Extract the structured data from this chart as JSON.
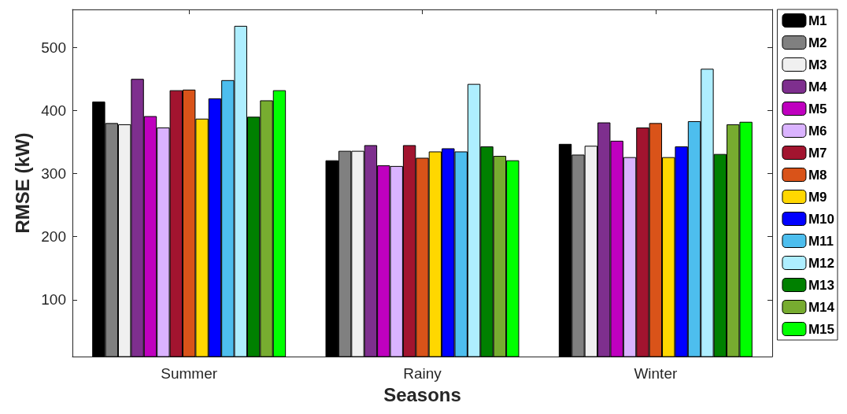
{
  "chart_data": {
    "type": "bar",
    "xlabel": "Seasons",
    "ylabel": "RMSE (kW)",
    "categories": [
      "Summer",
      "Rainy",
      "Winter"
    ],
    "series": [
      {
        "name": "M1",
        "color": "#000000",
        "values": [
          414,
          321,
          347
        ]
      },
      {
        "name": "M2",
        "color": "#808080",
        "values": [
          380,
          336,
          330
        ]
      },
      {
        "name": "M3",
        "color": "#f0f0f0",
        "values": [
          378,
          336,
          344
        ]
      },
      {
        "name": "M4",
        "color": "#7e2f8e",
        "values": [
          450,
          345,
          381
        ]
      },
      {
        "name": "M5",
        "color": "#bf00bf",
        "values": [
          391,
          313,
          352
        ]
      },
      {
        "name": "M6",
        "color": "#dab3ff",
        "values": [
          373,
          312,
          326
        ]
      },
      {
        "name": "M7",
        "color": "#a2142f",
        "values": [
          432,
          345,
          373
        ]
      },
      {
        "name": "M8",
        "color": "#d95319",
        "values": [
          433,
          325,
          380
        ]
      },
      {
        "name": "M9",
        "color": "#ffd700",
        "values": [
          387,
          335,
          326
        ]
      },
      {
        "name": "M10",
        "color": "#0000ff",
        "values": [
          419,
          340,
          343
        ]
      },
      {
        "name": "M11",
        "color": "#4dbeee",
        "values": [
          448,
          335,
          383
        ]
      },
      {
        "name": "M12",
        "color": "#aeeeff",
        "values": [
          534,
          442,
          466
        ]
      },
      {
        "name": "M13",
        "color": "#008000",
        "values": [
          390,
          343,
          331
        ]
      },
      {
        "name": "M14",
        "color": "#77ac30",
        "values": [
          416,
          328,
          378
        ]
      },
      {
        "name": "M15",
        "color": "#00ff00",
        "values": [
          432,
          321,
          382
        ]
      }
    ],
    "ylim": [
      10,
      560
    ],
    "yticks": [
      100,
      200,
      300,
      400,
      500
    ],
    "grid": false,
    "legend": "right"
  }
}
